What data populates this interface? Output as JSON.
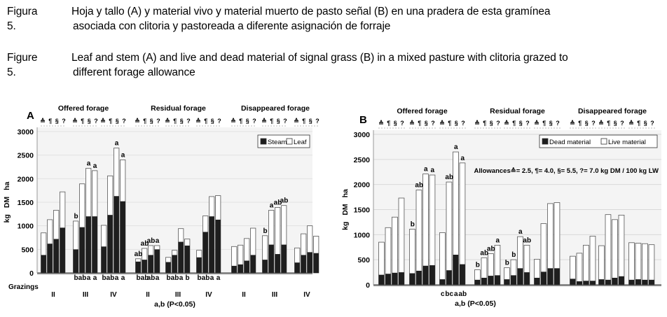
{
  "caption_es": {
    "label": "Figura 5.",
    "line1": "Hoja y tallo (A) y material vivo y material muerto de pasto señal (B) en una pradera de esta gramínea",
    "line2": "asociada con clitoria y pastoreada a diferente asignación de forraje"
  },
  "caption_en": {
    "label": "Figure 5.",
    "line1": "Leaf and stem (A) and live and dead material of signal grass (B) in a mixed pasture with clitoria grazed to",
    "line2": "different forage allowance"
  },
  "allowance_marks": [
    "≙",
    "¶",
    "§",
    "?"
  ],
  "colors": {
    "dark": "#1e1e1e",
    "light": "#ffffff",
    "outline": "#555555",
    "axis": "#999999"
  },
  "chart_data": [
    {
      "type": "bar",
      "panel": "A",
      "ylabel": "kg DM ha",
      "ylim": [
        0,
        3000
      ],
      "yticks": [
        0,
        500,
        1000,
        1500,
        2000,
        2500,
        3000
      ],
      "xlabel": "a,b (P<0.05)",
      "row_label": "Grazings",
      "groups": [
        "Offered forage",
        "Residual forage",
        "Disappeared forage"
      ],
      "grazings": [
        "II",
        "III",
        "IV"
      ],
      "legend": [
        "Steam",
        "Leaf"
      ],
      "series": [
        {
          "name": "Steam",
          "values": [
            [
              [
                380,
                620,
                720,
                960
              ],
              [
                500,
                970,
                1200,
                1200
              ],
              [
                560,
                1230,
                1630,
                1520
              ]
            ],
            [
              [
                240,
                280,
                380,
                500
              ],
              [
                230,
                380,
                660,
                580
              ],
              [
                330,
                870,
                1200,
                1130
              ]
            ],
            [
              [
                150,
                180,
                260,
                380
              ],
              [
                280,
                600,
                400,
                600
              ],
              [
                220,
                380,
                440,
                420
              ]
            ]
          ]
        },
        {
          "name": "Leaf",
          "values": [
            [
              [
                850,
                1130,
                1330,
                1720
              ],
              [
                1100,
                1890,
                2220,
                2170
              ],
              [
                1010,
                2060,
                2650,
                2400
              ]
            ],
            [
              [
                300,
                520,
                580,
                580
              ],
              [
                330,
                480,
                940,
                720
              ],
              [
                480,
                1210,
                1620,
                1640
              ]
            ],
            [
              [
                560,
                590,
                730,
                950
              ],
              [
                790,
                1330,
                1390,
                1430
              ],
              [
                530,
                830,
                1000,
                780
              ]
            ]
          ]
        }
      ],
      "annotations": [
        {
          "group": 0,
          "grazing": 1,
          "above": [
            "b",
            "",
            "a",
            "a"
          ],
          "below": [
            "b",
            "ab",
            "a",
            "a"
          ]
        },
        {
          "group": 0,
          "grazing": 2,
          "above": [
            "",
            "",
            "a",
            "a"
          ],
          "below": [
            "b",
            "ab",
            "a",
            "a"
          ]
        },
        {
          "group": 1,
          "grazing": 0,
          "above": [
            "ab",
            "ab",
            "ab",
            "a"
          ],
          "below": [
            "b",
            "ab",
            "ab",
            "a"
          ]
        },
        {
          "group": 1,
          "grazing": 1,
          "above": [
            "",
            "",
            "",
            ""
          ],
          "below": [
            "b",
            "ab",
            "a",
            "b"
          ]
        },
        {
          "group": 1,
          "grazing": 2,
          "above": [
            "",
            "",
            "",
            ""
          ],
          "below": [
            "b",
            "ab",
            "a",
            "a"
          ]
        },
        {
          "group": 2,
          "grazing": 1,
          "above": [
            "b",
            "a",
            "ab",
            "ab"
          ],
          "below": [
            "",
            "",
            "",
            ""
          ]
        }
      ]
    },
    {
      "type": "bar",
      "panel": "B",
      "ylabel": "kg DM ha",
      "ylim": [
        0,
        3000
      ],
      "yticks": [
        0,
        500,
        1000,
        1500,
        2000,
        2500,
        3000
      ],
      "xlabel": "a,b (P<0.05)",
      "groups": [
        "Offered forage",
        "Residual forage",
        "Disappeared forage"
      ],
      "legend": [
        "Dead material",
        "Live material"
      ],
      "allowances_note": "Allowances≙= 2.5, ¶= 4.0, §= 5.5, ?= 7.0 kg DM / 100 kg LW",
      "series": [
        {
          "name": "Dead material",
          "values": [
            [
              [
                200,
                220,
                240,
                250
              ],
              [
                230,
                280,
                380,
                390
              ],
              [
                110,
                290,
                600,
                410
              ]
            ],
            [
              [
                100,
                140,
                180,
                190
              ],
              [
                110,
                190,
                330,
                250
              ],
              [
                140,
                260,
                330,
                330
              ]
            ],
            [
              [
                120,
                70,
                80,
                80
              ],
              [
                110,
                100,
                140,
                170
              ],
              [
                100,
                110,
                100,
                100
              ]
            ]
          ]
        },
        {
          "name": "Live material",
          "values": [
            [
              [
                850,
                1140,
                1350,
                1730
              ],
              [
                1110,
                1890,
                2210,
                2190
              ],
              [
                1040,
                2050,
                2650,
                2430
              ]
            ],
            [
              [
                300,
                540,
                620,
                790
              ],
              [
                340,
                500,
                960,
                790
              ],
              [
                510,
                1220,
                1620,
                1640
              ]
            ],
            [
              [
                570,
                630,
                790,
                970
              ],
              [
                780,
                1400,
                1300,
                1390
              ],
              [
                840,
                830,
                820,
                800
              ]
            ]
          ]
        }
      ],
      "annotations": [
        {
          "group": 0,
          "grazing": 1,
          "above": [
            "b",
            "ab",
            "a",
            "a"
          ],
          "below": [
            "",
            "",
            "",
            ""
          ]
        },
        {
          "group": 0,
          "grazing": 2,
          "above": [
            "",
            "ab",
            "a",
            "a"
          ],
          "below": [
            "c",
            "bc",
            "a",
            "ab"
          ]
        },
        {
          "group": 1,
          "grazing": 0,
          "above": [
            "b",
            "ab",
            "ab",
            "a"
          ],
          "below": [
            "",
            "",
            "",
            ""
          ]
        },
        {
          "group": 1,
          "grazing": 1,
          "above": [
            "b",
            "b",
            "a",
            "ab"
          ],
          "below": [
            "",
            "",
            "",
            ""
          ]
        }
      ]
    }
  ]
}
